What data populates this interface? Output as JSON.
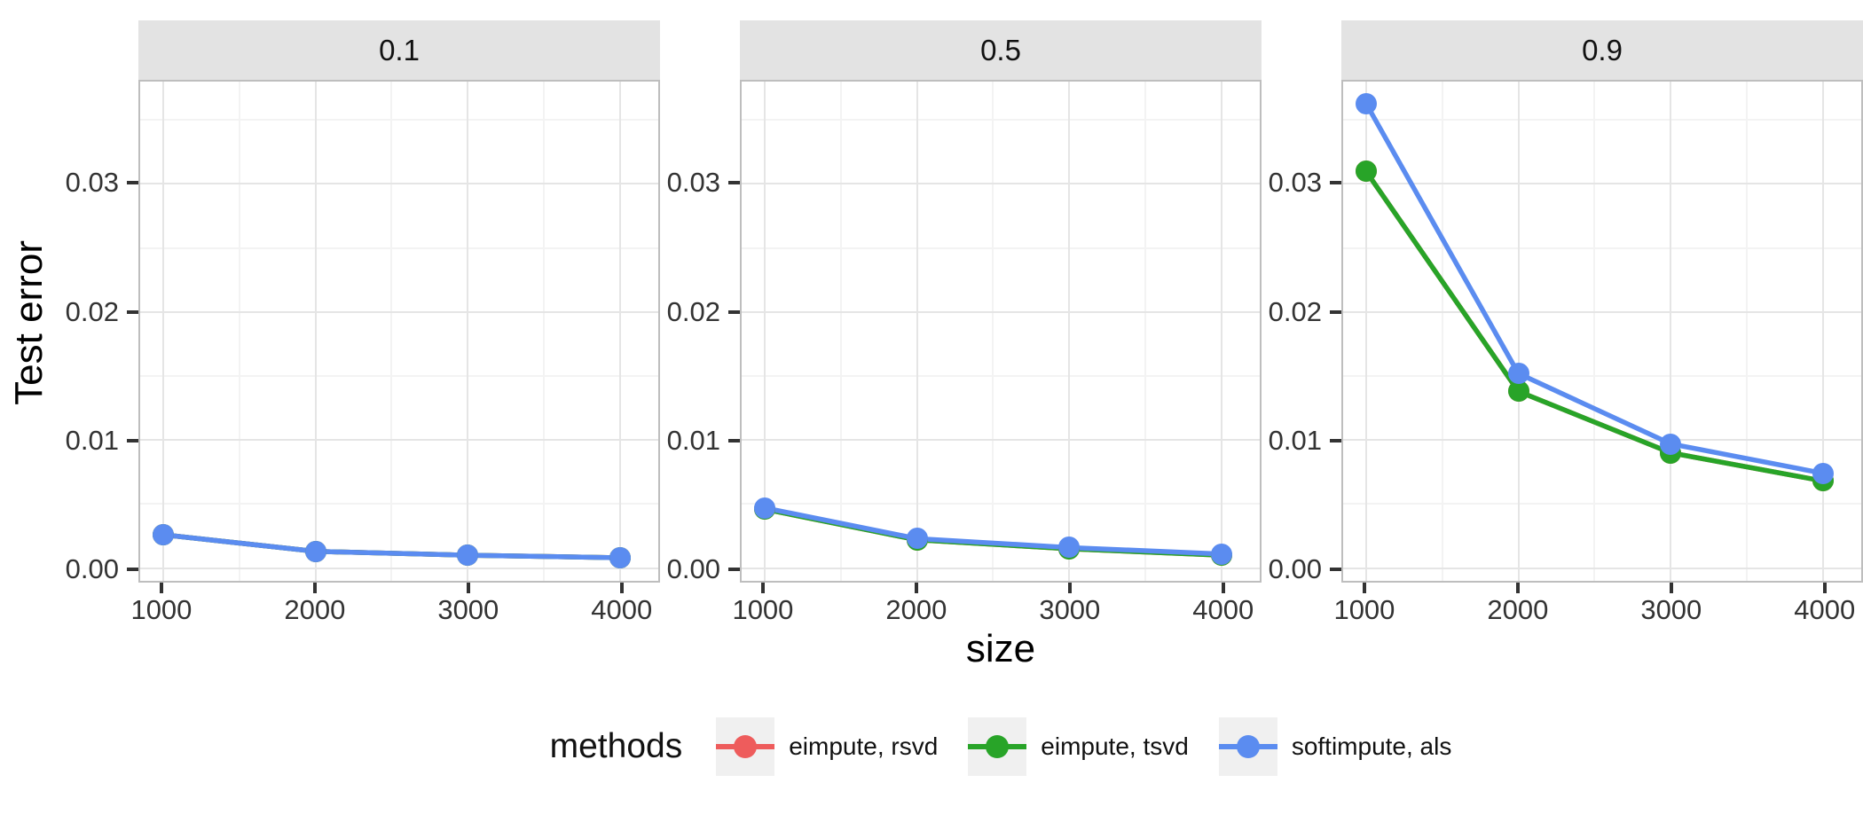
{
  "figure": {
    "y_axis_title": "Test error",
    "x_axis_title": "size"
  },
  "legend": {
    "title": "methods",
    "items": [
      {
        "label": "eimpute, rsvd",
        "color": "#EE5C5C"
      },
      {
        "label": "eimpute, tsvd",
        "color": "#28A428"
      },
      {
        "label": "softimpute, als",
        "color": "#5B8CF0"
      }
    ]
  },
  "chart_data": {
    "type": "line",
    "title": "",
    "xlabel": "size",
    "ylabel": "Test error",
    "x": [
      1000,
      2000,
      3000,
      4000
    ],
    "xticks": [
      1000,
      2000,
      3000,
      4000
    ],
    "xtick_labels": [
      "1000",
      "2000",
      "3000",
      "4000"
    ],
    "x_minor": [
      1500,
      2500,
      3500
    ],
    "yticks": [
      0,
      0.01,
      0.02,
      0.03
    ],
    "ytick_labels": [
      "0.00",
      "0.01",
      "0.02",
      "0.03"
    ],
    "y_minor": [
      0.005,
      0.015,
      0.025,
      0.035
    ],
    "xlim": [
      850,
      4250
    ],
    "ylim": [
      -0.001,
      0.038
    ],
    "grid": true,
    "legend_position": "bottom",
    "series": [
      {
        "name": "eimpute, rsvd",
        "color": "#EE5C5C"
      },
      {
        "name": "eimpute, tsvd",
        "color": "#28A428"
      },
      {
        "name": "softimpute, als",
        "color": "#5B8CF0"
      }
    ],
    "facets": [
      {
        "label": "0.1",
        "values": [
          [
            0.0026,
            0.0013,
            0.001,
            0.0008
          ],
          [
            0.0026,
            0.0013,
            0.001,
            0.0008
          ],
          [
            0.0026,
            0.0013,
            0.001,
            0.0008
          ]
        ]
      },
      {
        "label": "0.5",
        "values": [
          [
            0.0046,
            0.0022,
            0.0015,
            0.001
          ],
          [
            0.0046,
            0.0022,
            0.0015,
            0.001
          ],
          [
            0.0047,
            0.0023,
            0.0016,
            0.0011
          ]
        ]
      },
      {
        "label": "0.9",
        "values": [
          [
            0.031,
            0.0138,
            0.009,
            0.0068
          ],
          [
            0.031,
            0.0138,
            0.009,
            0.0068
          ],
          [
            0.0363,
            0.0152,
            0.0097,
            0.0074
          ]
        ]
      }
    ],
    "overlap_note": "eimpute rsvd and tsvd curves coincide with and are hidden beneath softimpute als in facets 0.1 and 0.5; eimpute rsvd is hidden beneath eimpute tsvd in facet 0.9"
  }
}
